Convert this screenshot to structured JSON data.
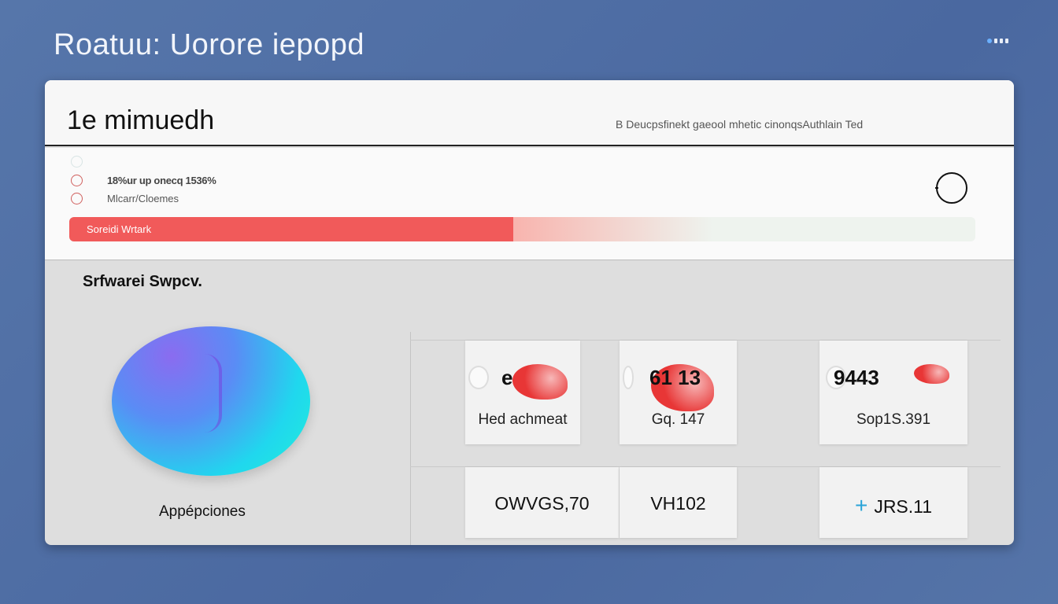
{
  "app": {
    "title": "Roatuu: Uorore iepopd"
  },
  "header": {
    "title": "1e mimuedh",
    "meta": "B Deucpsfinekt gaeool mhetic cinonqsAuthlain Ted"
  },
  "options": [
    {
      "label": "18%ur up onecq 1536%"
    },
    {
      "label": "Mlcarr/Cloemes"
    }
  ],
  "progress": {
    "label": "Soreidi Wrtark",
    "percent": 49,
    "color": "#f15a5a"
  },
  "section": {
    "title": "Srfwarei Swpcv."
  },
  "orb": {
    "label": "Appépciones"
  },
  "tiles": [
    {
      "value": "e",
      "caption": "Hed achmeat"
    },
    {
      "value": "61 13",
      "caption": "Gq. 147"
    },
    {
      "value": "9443",
      "caption": "Sop1S.391"
    }
  ],
  "bottom_tiles": [
    {
      "value": "OWVGS,70"
    },
    {
      "value": "VH102"
    },
    {
      "value": "JRS.11",
      "icon": "plus-icon"
    }
  ]
}
